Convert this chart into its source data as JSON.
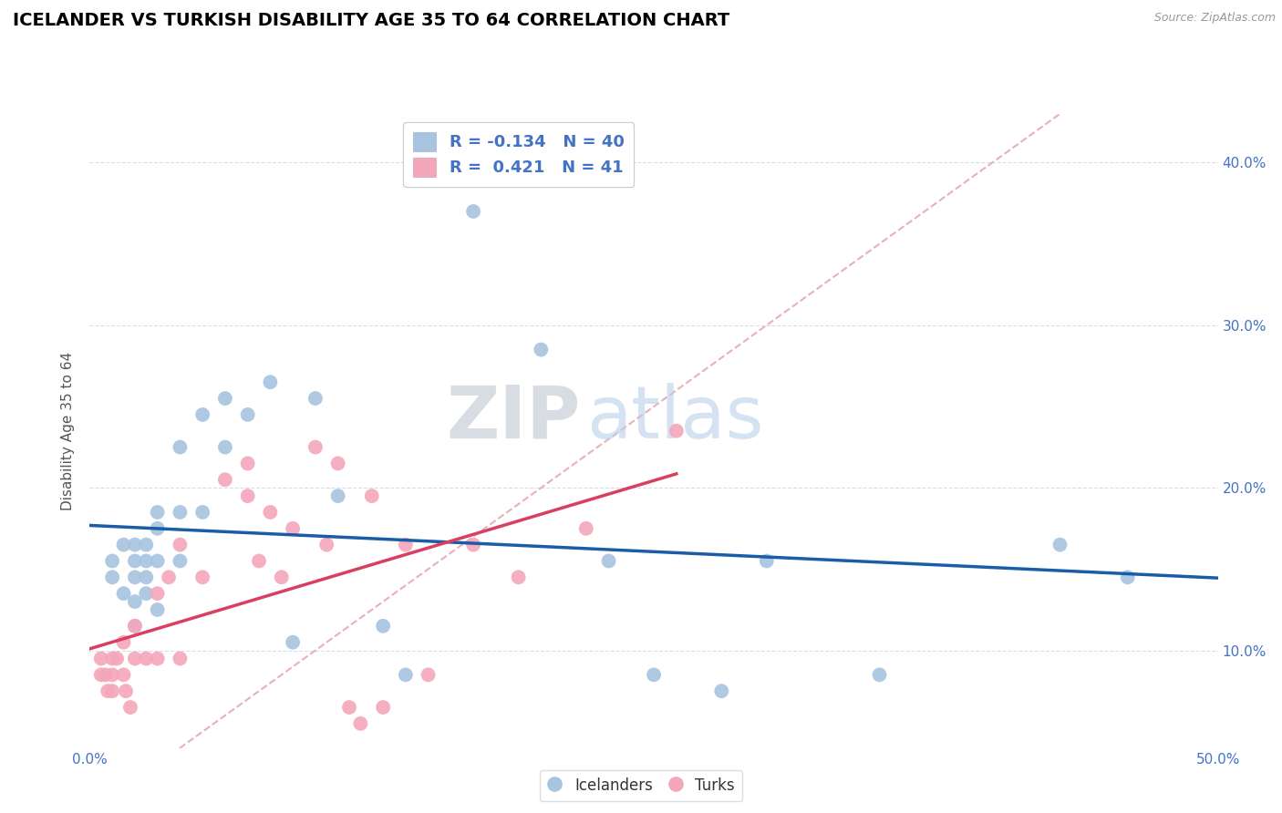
{
  "title": "ICELANDER VS TURKISH DISABILITY AGE 35 TO 64 CORRELATION CHART",
  "source": "Source: ZipAtlas.com",
  "ylabel": "Disability Age 35 to 64",
  "xlim": [
    0.0,
    0.5
  ],
  "ylim": [
    0.04,
    0.43
  ],
  "yticks": [
    0.1,
    0.2,
    0.3,
    0.4
  ],
  "ytick_labels": [
    "10.0%",
    "20.0%",
    "30.0%",
    "40.0%"
  ],
  "xticks": [
    0.0,
    0.1,
    0.2,
    0.3,
    0.4,
    0.5
  ],
  "icelander_color": "#a8c4e0",
  "turk_color": "#f4a7b9",
  "icelander_line_color": "#1a5ca8",
  "turk_line_color": "#d94060",
  "diagonal_color": "#e8b0b8",
  "watermark_zip": "ZIP",
  "watermark_atlas": "atlas",
  "icelanders_x": [
    0.01,
    0.01,
    0.015,
    0.015,
    0.02,
    0.02,
    0.02,
    0.02,
    0.02,
    0.025,
    0.025,
    0.025,
    0.025,
    0.03,
    0.03,
    0.03,
    0.03,
    0.04,
    0.04,
    0.04,
    0.05,
    0.05,
    0.06,
    0.06,
    0.07,
    0.08,
    0.09,
    0.1,
    0.11,
    0.13,
    0.14,
    0.17,
    0.2,
    0.23,
    0.25,
    0.28,
    0.3,
    0.35,
    0.43,
    0.46
  ],
  "icelanders_y": [
    0.155,
    0.145,
    0.165,
    0.135,
    0.165,
    0.155,
    0.145,
    0.13,
    0.115,
    0.165,
    0.155,
    0.145,
    0.135,
    0.185,
    0.175,
    0.155,
    0.125,
    0.225,
    0.185,
    0.155,
    0.245,
    0.185,
    0.255,
    0.225,
    0.245,
    0.265,
    0.105,
    0.255,
    0.195,
    0.115,
    0.085,
    0.37,
    0.285,
    0.155,
    0.085,
    0.075,
    0.155,
    0.085,
    0.165,
    0.145
  ],
  "turks_x": [
    0.005,
    0.005,
    0.007,
    0.008,
    0.01,
    0.01,
    0.01,
    0.012,
    0.015,
    0.015,
    0.016,
    0.018,
    0.02,
    0.02,
    0.025,
    0.03,
    0.03,
    0.035,
    0.04,
    0.04,
    0.05,
    0.06,
    0.07,
    0.07,
    0.075,
    0.08,
    0.085,
    0.09,
    0.1,
    0.105,
    0.11,
    0.115,
    0.12,
    0.125,
    0.13,
    0.14,
    0.15,
    0.17,
    0.19,
    0.22,
    0.26
  ],
  "turks_y": [
    0.095,
    0.085,
    0.085,
    0.075,
    0.095,
    0.085,
    0.075,
    0.095,
    0.105,
    0.085,
    0.075,
    0.065,
    0.115,
    0.095,
    0.095,
    0.135,
    0.095,
    0.145,
    0.165,
    0.095,
    0.145,
    0.205,
    0.215,
    0.195,
    0.155,
    0.185,
    0.145,
    0.175,
    0.225,
    0.165,
    0.215,
    0.065,
    0.055,
    0.195,
    0.065,
    0.165,
    0.085,
    0.165,
    0.145,
    0.175,
    0.235
  ]
}
